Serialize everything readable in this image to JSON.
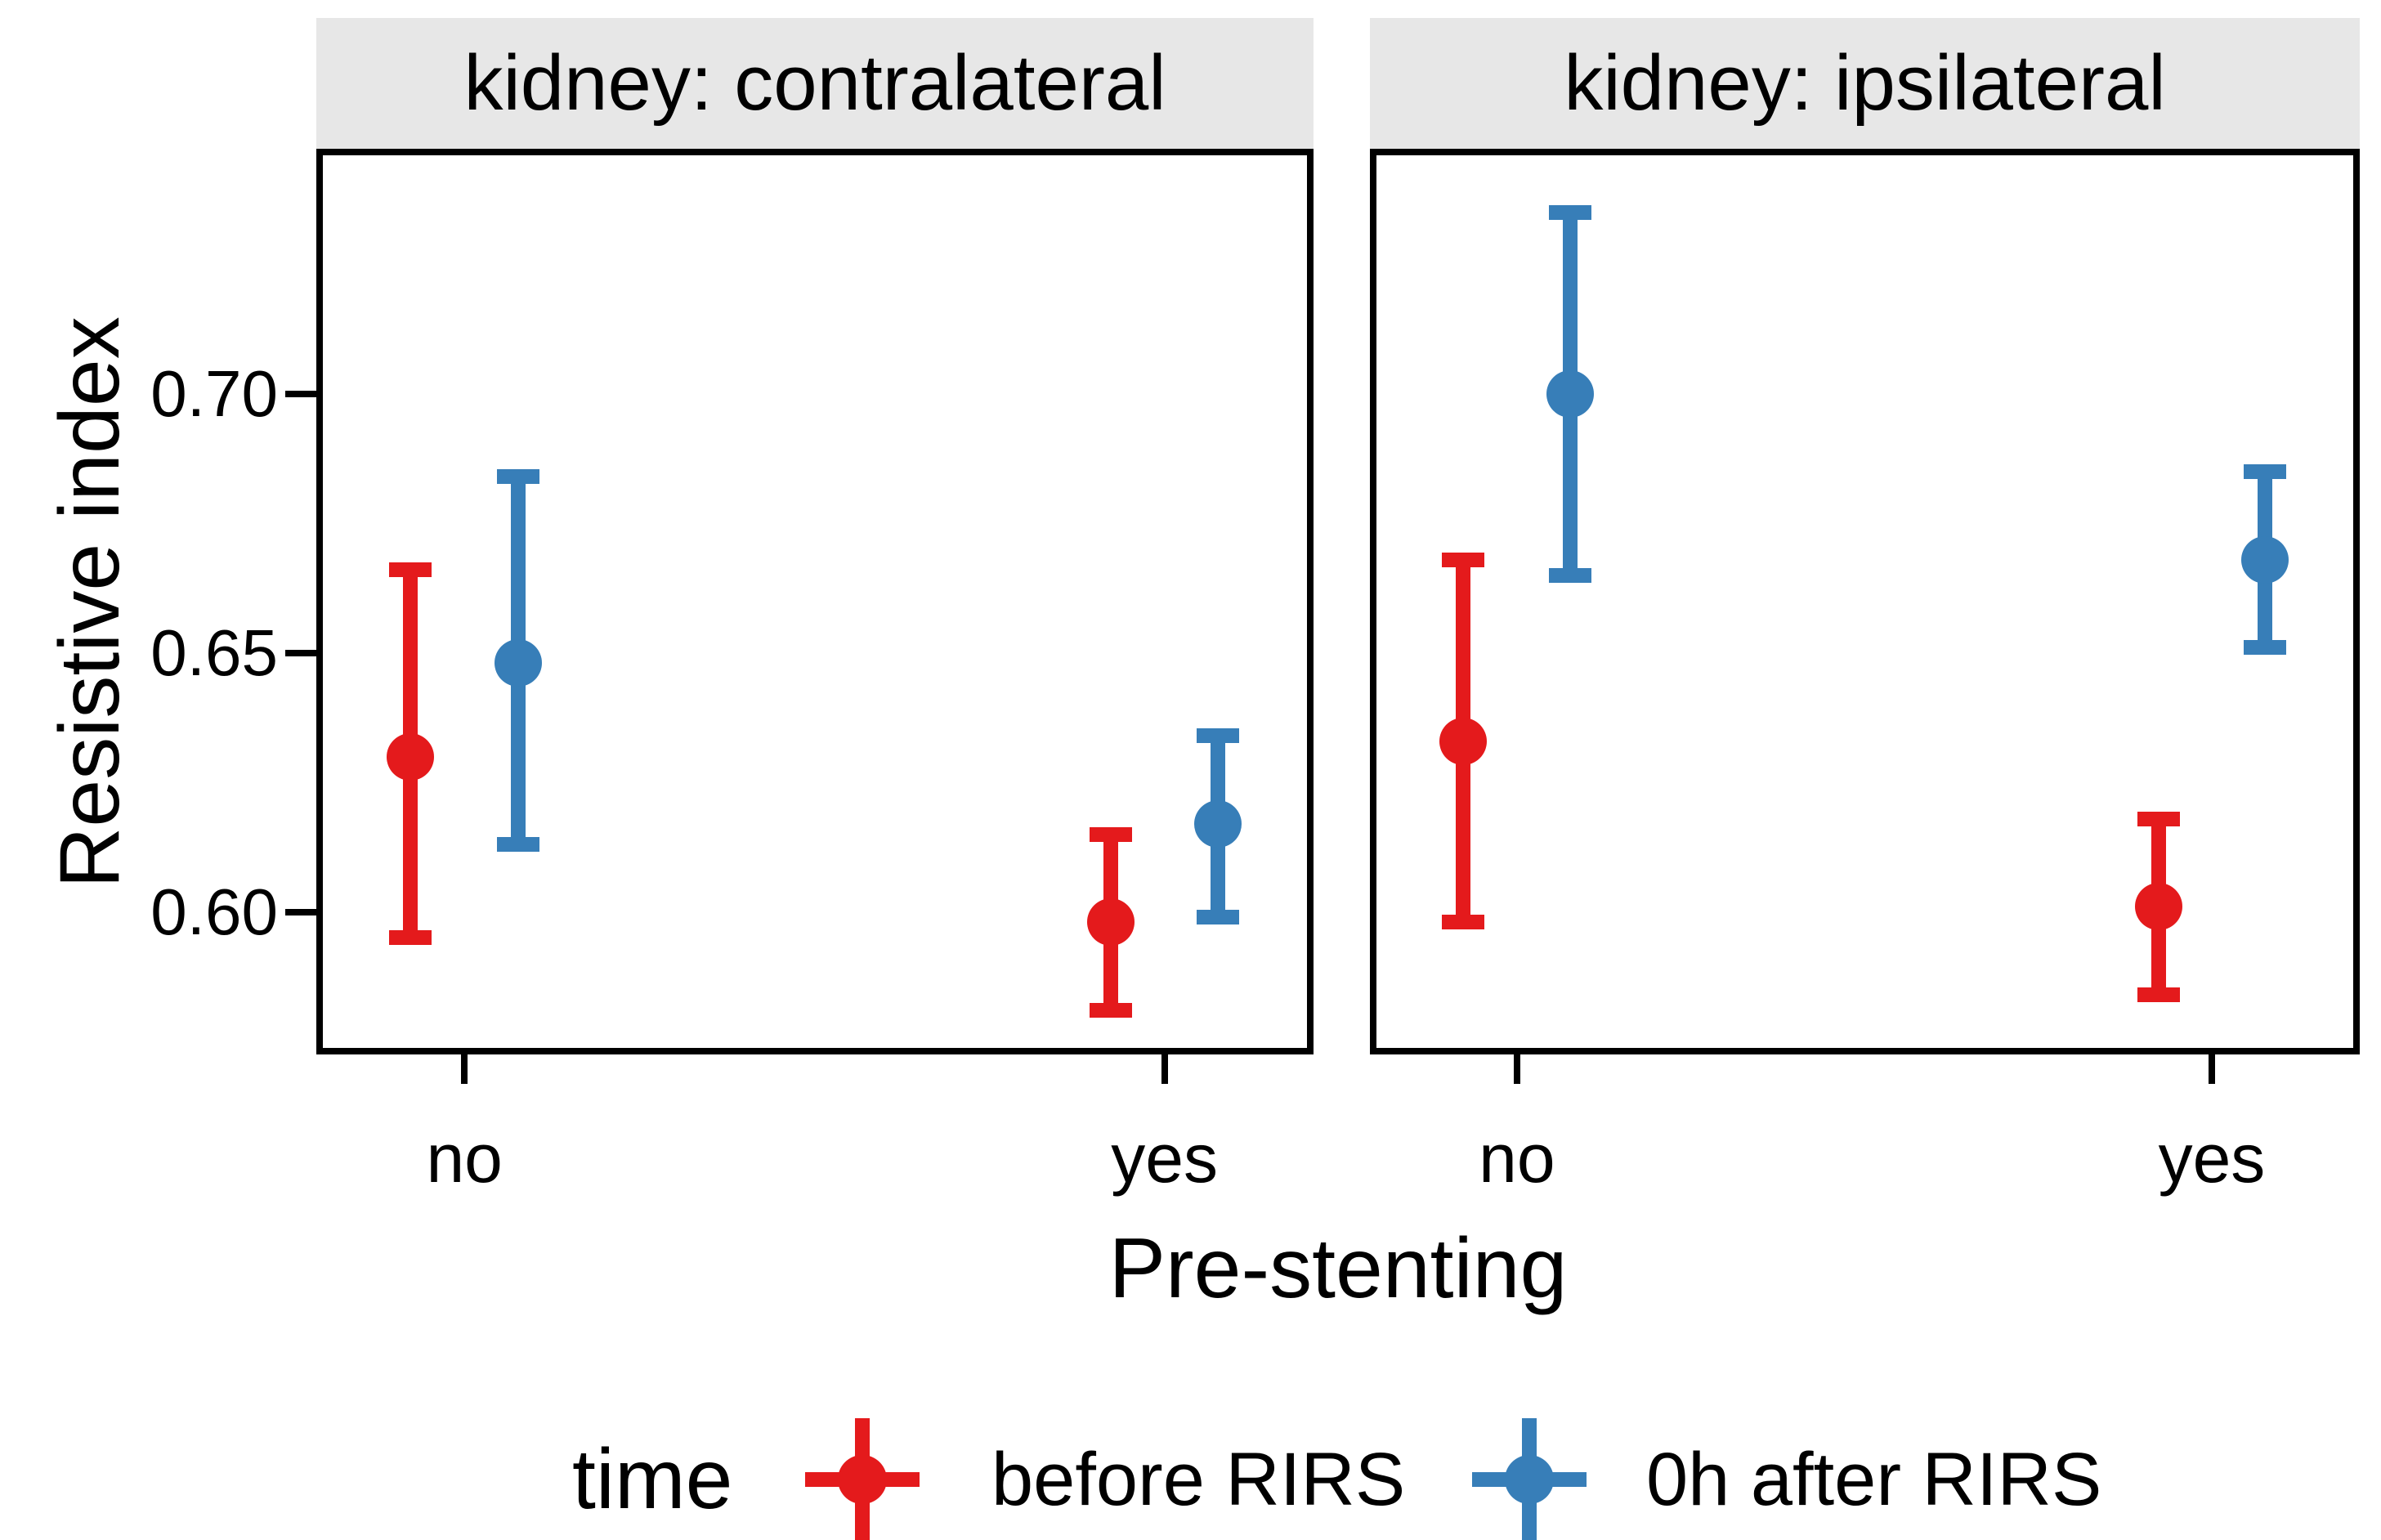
{
  "chart_data": {
    "type": "pointrange",
    "title": "",
    "facet_variable": "kidney",
    "facets": [
      {
        "label": "kidney: contralateral"
      },
      {
        "label": "kidney: ipsilateral"
      }
    ],
    "xlabel": "Pre-stenting",
    "ylabel": "Resistive index",
    "categories": [
      "no",
      "yes"
    ],
    "series": [
      {
        "name": "before RIRS",
        "color": "#E41A1C"
      },
      {
        "name": "0h after RIRS",
        "color": "#377EB8"
      }
    ],
    "points": [
      {
        "facet": 0,
        "category": "no",
        "series": 0,
        "mean": 0.63,
        "lo": 0.595,
        "hi": 0.666
      },
      {
        "facet": 0,
        "category": "no",
        "series": 1,
        "mean": 0.648,
        "lo": 0.613,
        "hi": 0.684
      },
      {
        "facet": 0,
        "category": "yes",
        "series": 0,
        "mean": 0.598,
        "lo": 0.581,
        "hi": 0.615
      },
      {
        "facet": 0,
        "category": "yes",
        "series": 1,
        "mean": 0.617,
        "lo": 0.599,
        "hi": 0.634
      },
      {
        "facet": 1,
        "category": "no",
        "series": 0,
        "mean": 0.633,
        "lo": 0.598,
        "hi": 0.668
      },
      {
        "facet": 1,
        "category": "no",
        "series": 1,
        "mean": 0.7,
        "lo": 0.665,
        "hi": 0.735
      },
      {
        "facet": 1,
        "category": "yes",
        "series": 0,
        "mean": 0.601,
        "lo": 0.584,
        "hi": 0.618
      },
      {
        "facet": 1,
        "category": "yes",
        "series": 1,
        "mean": 0.668,
        "lo": 0.651,
        "hi": 0.685
      }
    ],
    "yticks": [
      {
        "value": 0.6,
        "label": "0.60"
      },
      {
        "value": 0.65,
        "label": "0.65"
      },
      {
        "value": 0.7,
        "label": "0.70"
      }
    ],
    "ylim": [
      0.5725,
      0.7473
    ],
    "grid": false,
    "legend_position": "bottom",
    "legend_title": "time",
    "strip_bg": "#E7E7E7",
    "axis_color": "#000000"
  }
}
